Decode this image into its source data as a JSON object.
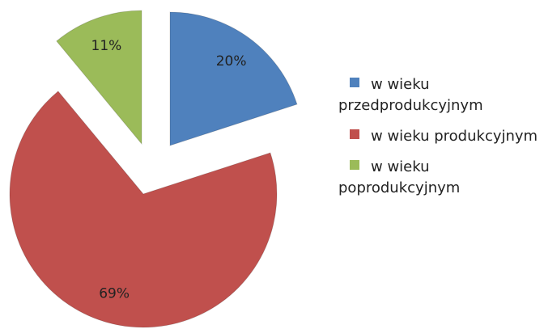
{
  "chart_data": {
    "type": "pie",
    "categories": [
      "w wieku przedprodukcyjnym",
      "w wieku produkcyjnym",
      "w wieku poprodukcyjnym"
    ],
    "values": [
      20,
      69,
      11
    ],
    "value_labels": [
      "20%",
      "69%",
      "11%"
    ],
    "colors": [
      "#4f81bd",
      "#c0504d",
      "#9bbb59"
    ],
    "legend": "right"
  }
}
